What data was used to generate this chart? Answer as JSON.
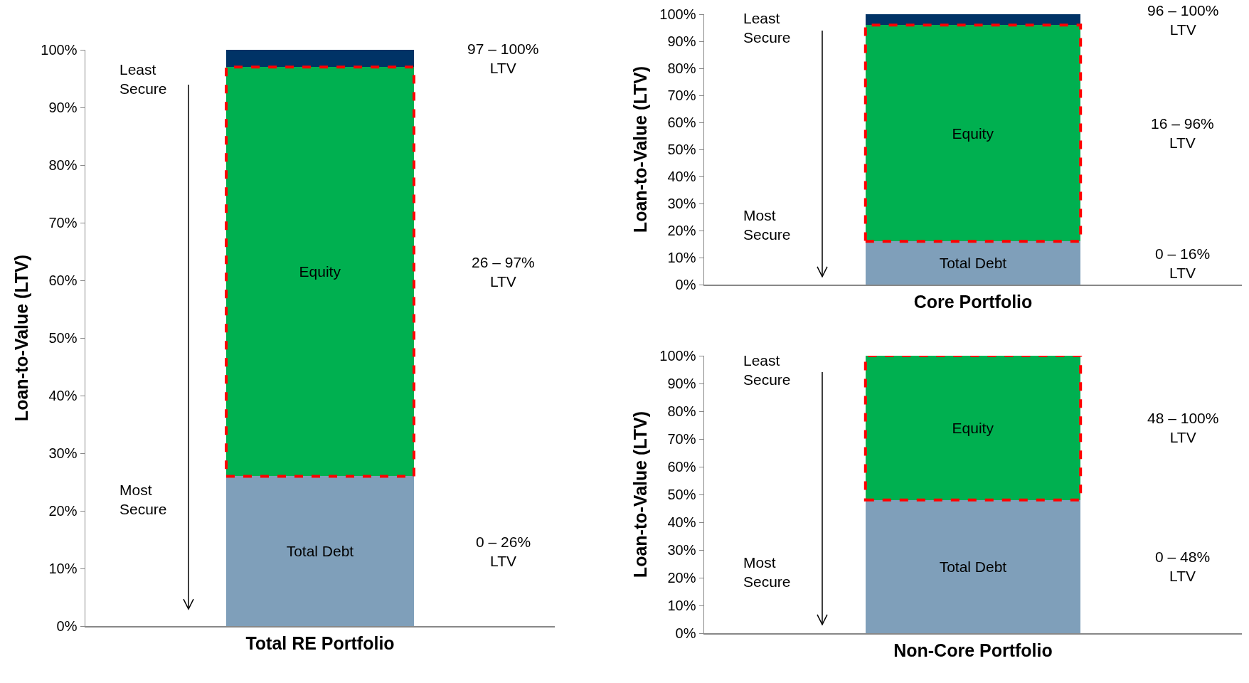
{
  "chart_data": [
    {
      "type": "bar",
      "stacked": true,
      "xlabel": "Total RE Portfolio",
      "ylabel": "Loan-to-Value (LTV)",
      "categories": [
        null
      ],
      "ylim": [
        0,
        100
      ],
      "yticks": [
        {
          "value": 0,
          "label": "0%"
        },
        {
          "value": 10,
          "label": "10%"
        },
        {
          "value": 20,
          "label": "20%"
        },
        {
          "value": 30,
          "label": "30%"
        },
        {
          "value": 40,
          "label": "40%"
        },
        {
          "value": 50,
          "label": "50%"
        },
        {
          "value": 60,
          "label": "60%"
        },
        {
          "value": 70,
          "label": "70%"
        },
        {
          "value": 80,
          "label": "80%"
        },
        {
          "value": 90,
          "label": "90%"
        },
        {
          "value": 100,
          "label": "100%"
        }
      ],
      "grid": false,
      "legend": false,
      "series": [
        {
          "name": "Total Debt",
          "color": "#7f9fba",
          "values": [
            26
          ]
        },
        {
          "name": "Equity",
          "color": "#00b050",
          "values": [
            71
          ],
          "line_style": "dashed"
        },
        {
          "color": "#003366",
          "values": [
            3
          ]
        }
      ],
      "annotations": [
        "Least\nSecure",
        "Most\nSecure",
        "97 – 100%\nLTV",
        "26 – 97%\nLTV",
        "0 – 26%\nLTV"
      ]
    },
    {
      "type": "bar",
      "stacked": true,
      "xlabel": "Core Portfolio",
      "ylabel": "Loan-to-Value (LTV)",
      "categories": [
        null
      ],
      "ylim": [
        0,
        100
      ],
      "yticks": [
        {
          "value": 0,
          "label": "0%"
        },
        {
          "value": 10,
          "label": "10%"
        },
        {
          "value": 20,
          "label": "20%"
        },
        {
          "value": 30,
          "label": "30%"
        },
        {
          "value": 40,
          "label": "40%"
        },
        {
          "value": 50,
          "label": "50%"
        },
        {
          "value": 60,
          "label": "60%"
        },
        {
          "value": 70,
          "label": "70%"
        },
        {
          "value": 80,
          "label": "80%"
        },
        {
          "value": 90,
          "label": "90%"
        },
        {
          "value": 100,
          "label": "100%"
        }
      ],
      "grid": false,
      "legend": false,
      "series": [
        {
          "name": "Total Debt",
          "color": "#7f9fba",
          "values": [
            16
          ]
        },
        {
          "name": "Equity",
          "color": "#00b050",
          "values": [
            80
          ],
          "line_style": "dashed"
        },
        {
          "color": "#003366",
          "values": [
            4
          ]
        }
      ],
      "annotations": [
        "Least\nSecure",
        "Most\nSecure",
        "96 – 100%\nLTV",
        "16 – 96%\nLTV",
        "0 – 16%\nLTV"
      ]
    },
    {
      "type": "bar",
      "stacked": true,
      "xlabel": "Non-Core Portfolio",
      "ylabel": "Loan-to-Value (LTV)",
      "categories": [
        null
      ],
      "ylim": [
        0,
        100
      ],
      "yticks": [
        {
          "value": 0,
          "label": "0%"
        },
        {
          "value": 10,
          "label": "10%"
        },
        {
          "value": 20,
          "label": "20%"
        },
        {
          "value": 30,
          "label": "30%"
        },
        {
          "value": 40,
          "label": "40%"
        },
        {
          "value": 50,
          "label": "50%"
        },
        {
          "value": 60,
          "label": "60%"
        },
        {
          "value": 70,
          "label": "70%"
        },
        {
          "value": 80,
          "label": "80%"
        },
        {
          "value": 90,
          "label": "90%"
        },
        {
          "value": 100,
          "label": "100%"
        }
      ],
      "grid": false,
      "legend": false,
      "series": [
        {
          "name": "Total Debt",
          "color": "#7f9fba",
          "values": [
            48
          ]
        },
        {
          "name": "Equity",
          "color": "#00b050",
          "values": [
            52
          ],
          "line_style": "dashed"
        }
      ],
      "annotations": [
        "Least\nSecure",
        "Most\nSecure",
        "48 – 100%\nLTV",
        "0 – 48%\nLTV"
      ]
    }
  ]
}
